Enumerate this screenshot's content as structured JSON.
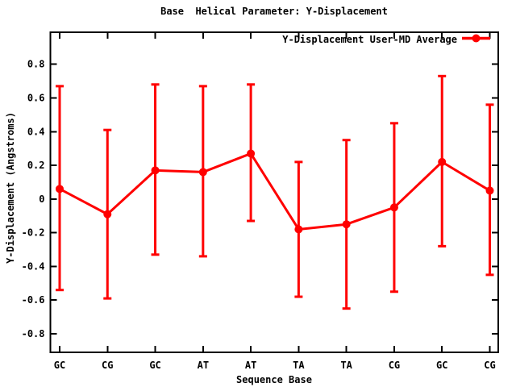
{
  "window": {
    "background": "#ffffff"
  },
  "chart_data": {
    "type": "line",
    "title": "Base  Helical Parameter: Y-Displacement",
    "xlabel": "Sequence Base",
    "ylabel": "Y-Displacement (Angstroms)",
    "legend": {
      "label": "Y-Displacement User-MD Average",
      "position": "top-right-inside"
    },
    "categories": [
      "GC",
      "CG",
      "GC",
      "AT",
      "AT",
      "TA",
      "TA",
      "CG",
      "GC",
      "CG"
    ],
    "series": [
      {
        "name": "Y-Displacement User-MD Average",
        "color": "#ff0000",
        "marker": "filled-circle",
        "values": [
          0.06,
          -0.09,
          0.17,
          0.16,
          0.27,
          -0.18,
          -0.15,
          -0.05,
          0.22,
          0.05
        ],
        "error_top": [
          0.67,
          0.41,
          0.68,
          0.67,
          0.68,
          0.22,
          0.35,
          0.45,
          0.73,
          0.56
        ],
        "error_bottom": [
          -0.54,
          -0.59,
          -0.33,
          -0.34,
          -0.13,
          -0.58,
          -0.65,
          -0.55,
          -0.28,
          -0.45
        ]
      }
    ],
    "yticks": {
      "values": [
        0.8,
        0.6,
        0.4,
        0.2,
        0,
        -0.2,
        -0.4,
        -0.6,
        -0.8
      ],
      "labels": [
        "0.8",
        "0.6",
        "0.4",
        "0.2",
        "0",
        "-0.2",
        "-0.4",
        "-0.6",
        "-0.8"
      ]
    },
    "ylim": [
      -0.91,
      0.99
    ],
    "grid": false,
    "tick_style": "inward-mirrored",
    "axis_color": "#000000",
    "background_color": "#ffffff"
  }
}
